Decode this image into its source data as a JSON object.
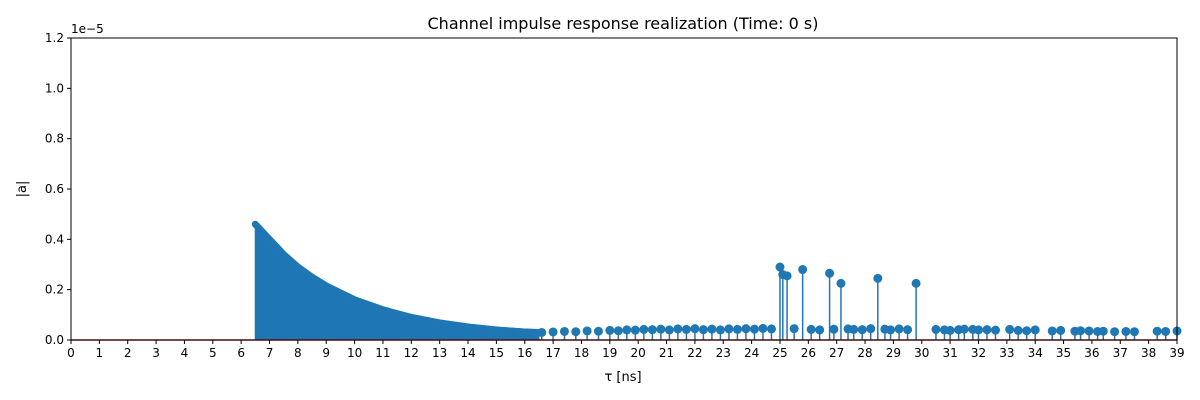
{
  "chart_data": {
    "type": "stem",
    "title": "Channel impulse response realization (Time: 0 s)",
    "xlabel": "τ [ns]",
    "ylabel": "|a|",
    "y_scale_label": "1e−5",
    "xlim": [
      0,
      39
    ],
    "ylim": [
      0,
      1.2
    ],
    "y_unit_multiplier": 1e-05,
    "xticks": [
      0,
      1,
      2,
      3,
      4,
      5,
      6,
      7,
      8,
      9,
      10,
      11,
      12,
      13,
      14,
      15,
      16,
      17,
      18,
      19,
      20,
      21,
      22,
      23,
      24,
      25,
      26,
      27,
      28,
      29,
      30,
      31,
      32,
      33,
      34,
      35,
      36,
      37,
      38,
      39
    ],
    "yticks": [
      "0.0",
      "0.2",
      "0.4",
      "0.6",
      "0.8",
      "1.0",
      "1.2"
    ],
    "grid": false,
    "legend": "none",
    "colors": {
      "stem": "#1f77b4",
      "baseline": "#d62728",
      "axes": "#000000"
    },
    "dense_cluster": {
      "description_values": "dense stems from 6.5 ns to 16.5 ns following exponential-like decay",
      "x_start": 6.5,
      "x_end": 16.5,
      "envelope_x": [
        6.5,
        7.0,
        7.5,
        8.0,
        8.5,
        9.0,
        10.0,
        11.0,
        12.0,
        13.0,
        14.0,
        15.0,
        16.0,
        16.5
      ],
      "envelope_y": [
        0.46,
        0.4,
        0.34,
        0.29,
        0.25,
        0.215,
        0.16,
        0.12,
        0.09,
        0.068,
        0.052,
        0.04,
        0.032,
        0.03
      ]
    },
    "points": {
      "x": [
        16.6,
        17.0,
        17.4,
        17.8,
        18.2,
        18.6,
        19.0,
        19.3,
        19.6,
        19.9,
        20.2,
        20.5,
        20.8,
        21.1,
        21.4,
        21.7,
        22.0,
        22.3,
        22.6,
        22.9,
        23.2,
        23.5,
        23.8,
        24.1,
        24.4,
        24.7,
        25.0,
        25.1,
        25.25,
        25.5,
        25.8,
        26.1,
        26.4,
        26.75,
        26.9,
        27.15,
        27.4,
        27.6,
        27.9,
        28.2,
        28.45,
        28.7,
        28.9,
        29.2,
        29.5,
        29.8,
        30.5,
        30.8,
        31.0,
        31.3,
        31.5,
        31.8,
        32.0,
        32.3,
        32.6,
        33.1,
        33.4,
        33.7,
        34.0,
        34.6,
        34.9,
        35.4,
        35.6,
        35.9,
        36.2,
        36.4,
        36.8,
        37.2,
        37.5,
        38.3,
        38.6,
        39.0
      ],
      "y": [
        0.03,
        0.032,
        0.034,
        0.033,
        0.036,
        0.035,
        0.038,
        0.037,
        0.04,
        0.039,
        0.042,
        0.041,
        0.043,
        0.04,
        0.044,
        0.042,
        0.045,
        0.041,
        0.043,
        0.04,
        0.044,
        0.042,
        0.045,
        0.043,
        0.046,
        0.044,
        0.29,
        0.26,
        0.255,
        0.045,
        0.28,
        0.042,
        0.04,
        0.265,
        0.043,
        0.225,
        0.044,
        0.042,
        0.041,
        0.045,
        0.245,
        0.043,
        0.04,
        0.044,
        0.041,
        0.225,
        0.042,
        0.04,
        0.038,
        0.041,
        0.043,
        0.042,
        0.04,
        0.041,
        0.039,
        0.042,
        0.038,
        0.037,
        0.04,
        0.036,
        0.038,
        0.035,
        0.037,
        0.036,
        0.034,
        0.035,
        0.033,
        0.034,
        0.033,
        0.035,
        0.034,
        0.036
      ]
    }
  }
}
